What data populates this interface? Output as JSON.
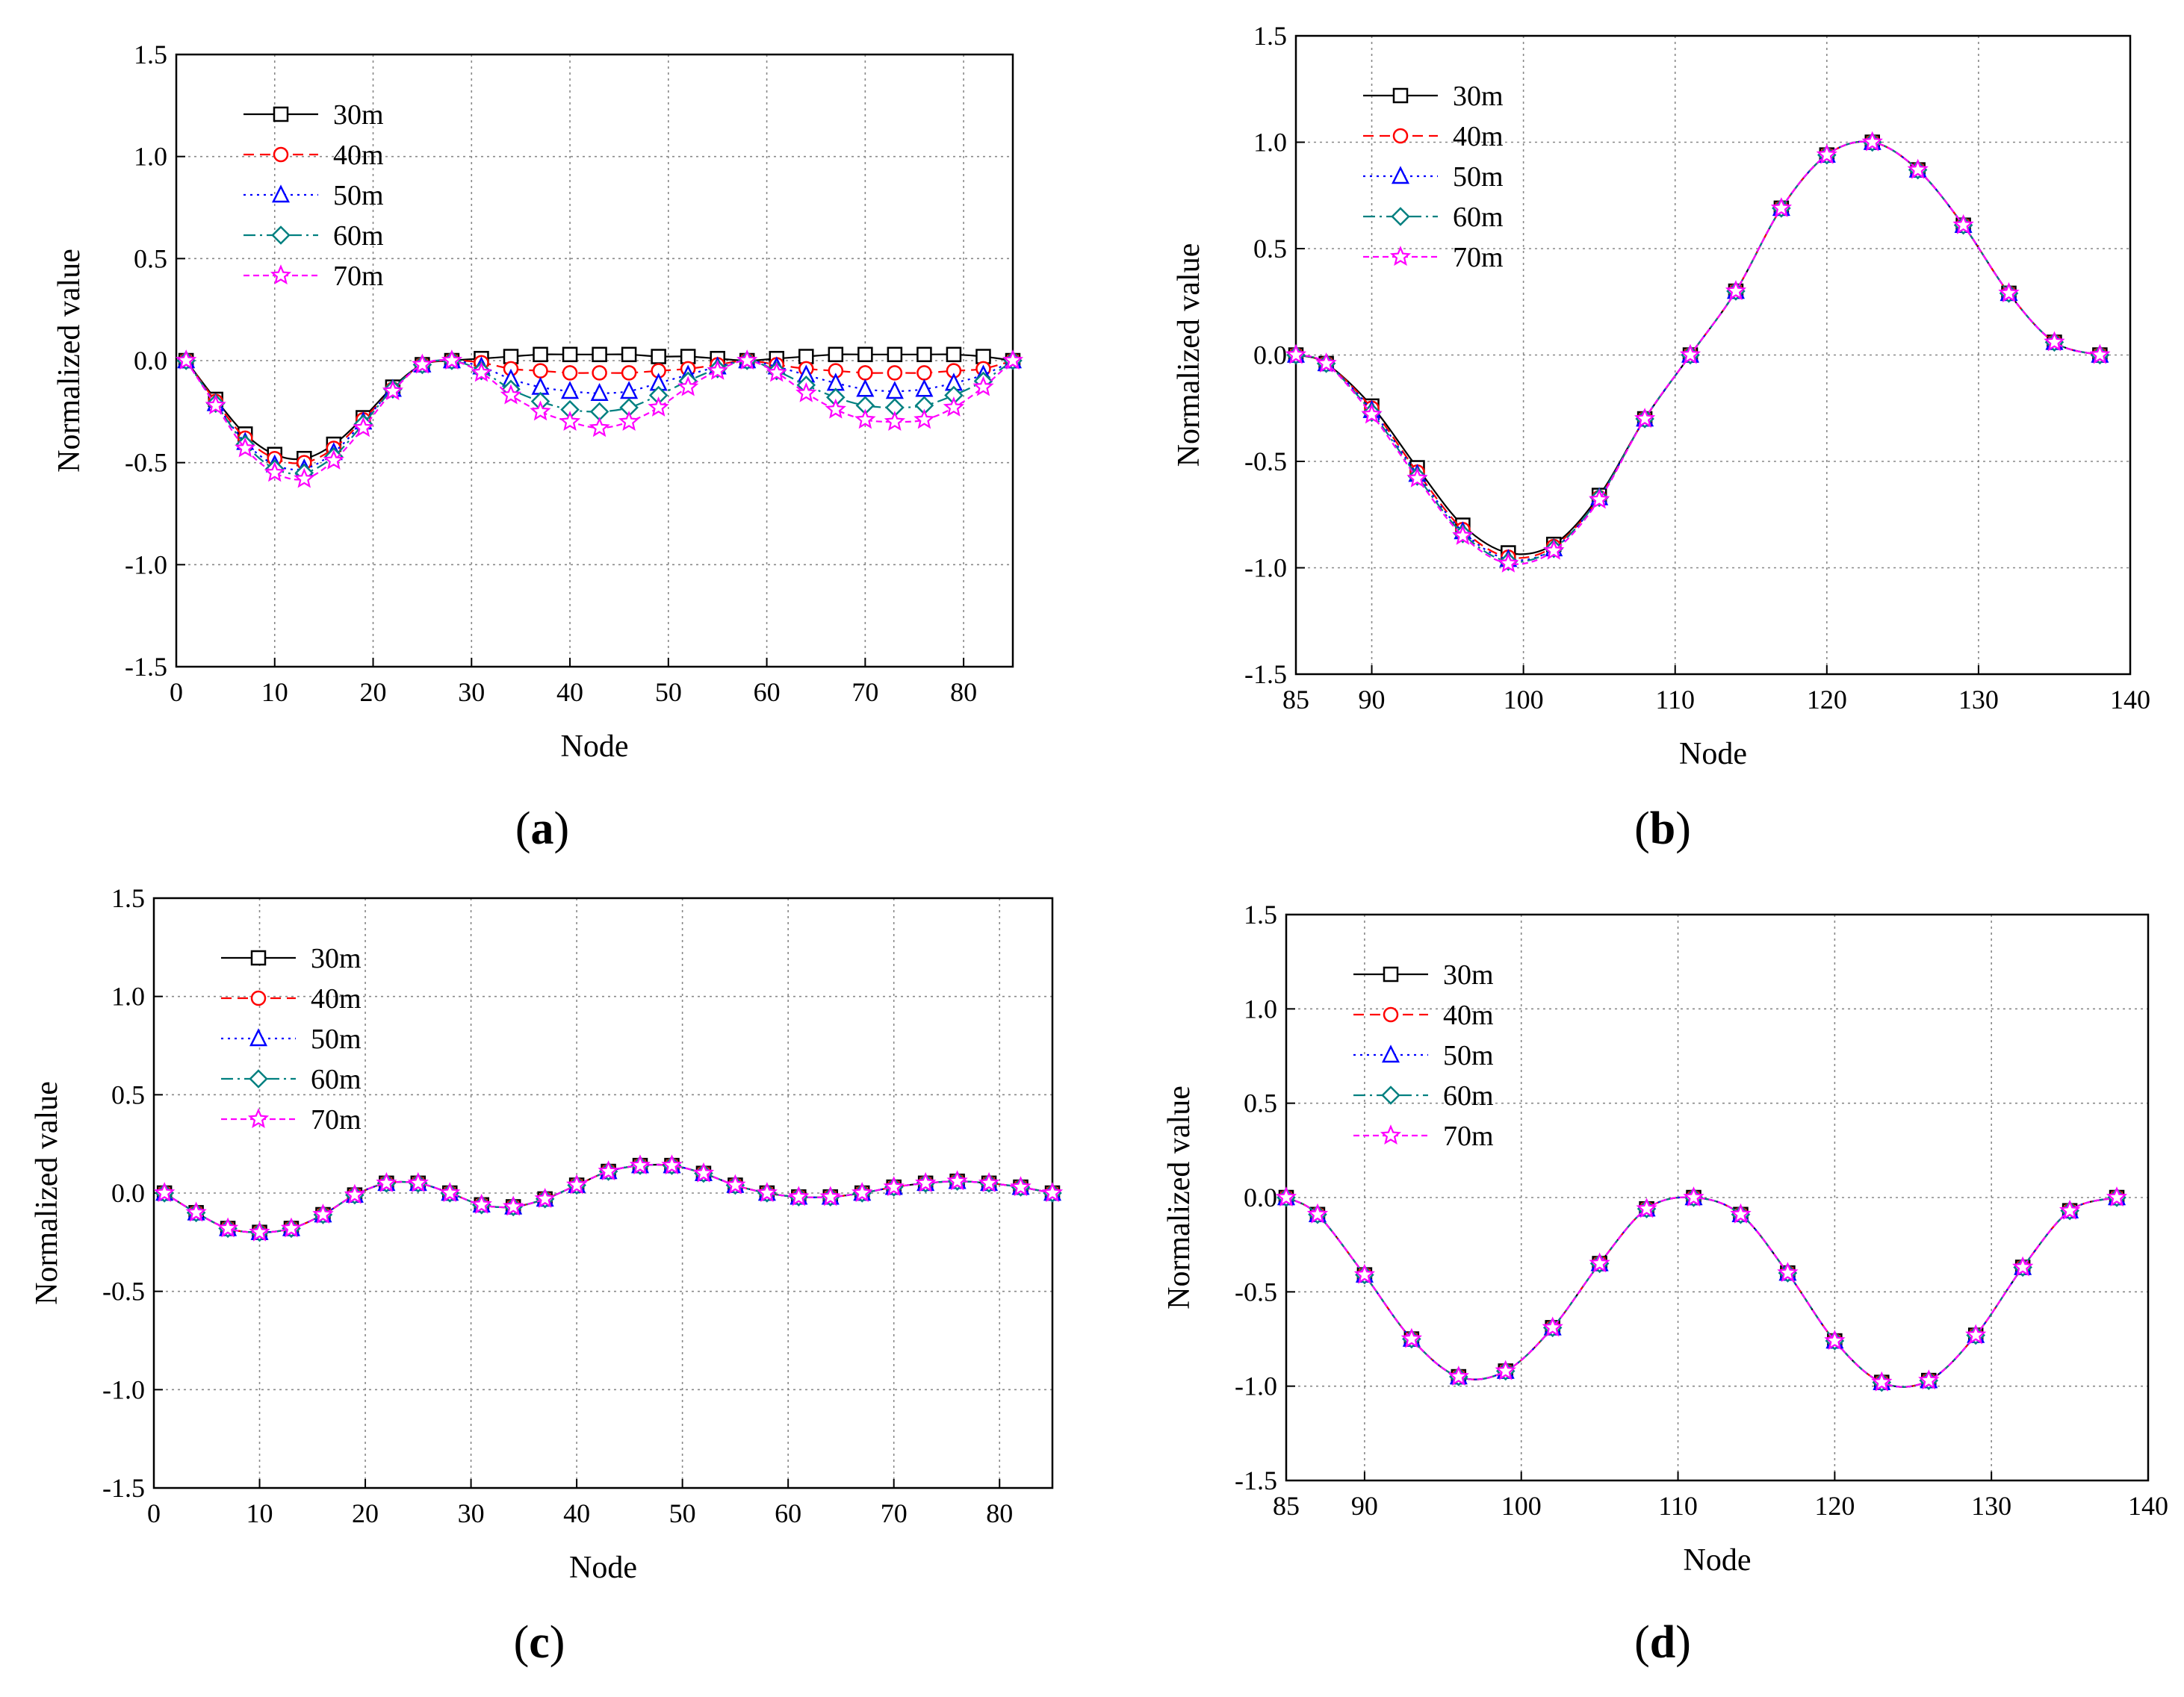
{
  "figure": {
    "panels": [
      {
        "id": "a",
        "label_open": "(",
        "label_letter": "a",
        "label_close": ")"
      },
      {
        "id": "b",
        "label_open": "(",
        "label_letter": "b",
        "label_close": ")"
      },
      {
        "id": "c",
        "label_open": "(",
        "label_letter": "c",
        "label_close": ")"
      },
      {
        "id": "d",
        "label_open": "(",
        "label_letter": "d",
        "label_close": ")"
      }
    ]
  },
  "series_style": [
    {
      "name": "30m",
      "color": "#000000",
      "marker": "square",
      "dash": "solid"
    },
    {
      "name": "40m",
      "color": "#ff0000",
      "marker": "circle",
      "dash": "dash"
    },
    {
      "name": "50m",
      "color": "#0000ff",
      "marker": "triangle",
      "dash": "dot"
    },
    {
      "name": "60m",
      "color": "#008080",
      "marker": "diamond",
      "dash": "dashdot"
    },
    {
      "name": "70m",
      "color": "#ff00ff",
      "marker": "star",
      "dash": "shortdash"
    }
  ],
  "chart_data": [
    {
      "id": "a",
      "type": "line",
      "xlabel": "Node",
      "ylabel": "Normalized value",
      "xlim": [
        0,
        85
      ],
      "ylim": [
        -1.5,
        1.5
      ],
      "xticks": [
        0,
        10,
        20,
        30,
        40,
        50,
        60,
        70,
        80
      ],
      "yticks": [
        -1.5,
        -1.0,
        -0.5,
        0.0,
        0.5,
        1.0,
        1.5
      ],
      "ytick_labels": [
        "-1.5",
        "-1.0",
        "-0.5",
        "0.0",
        "0.5",
        "1.0",
        "1.5"
      ],
      "xtick_labels": [
        "0",
        "10",
        "20",
        "30",
        "40",
        "50",
        "60",
        "70",
        "80"
      ],
      "grid": true,
      "legend": "top-left",
      "x": [
        1,
        4,
        7,
        10,
        13,
        16,
        19,
        22,
        25,
        28,
        31,
        34,
        37,
        40,
        43,
        46,
        49,
        52,
        55,
        58,
        61,
        64,
        67,
        70,
        73,
        76,
        79,
        82,
        85
      ],
      "series": [
        {
          "name": "30m",
          "values": [
            0,
            -0.19,
            -0.36,
            -0.46,
            -0.48,
            -0.41,
            -0.28,
            -0.13,
            -0.02,
            0.0,
            0.01,
            0.02,
            0.03,
            0.03,
            0.03,
            0.03,
            0.02,
            0.02,
            0.01,
            0.0,
            0.01,
            0.02,
            0.03,
            0.03,
            0.03,
            0.03,
            0.03,
            0.02,
            0.0
          ]
        },
        {
          "name": "40m",
          "values": [
            0,
            -0.2,
            -0.38,
            -0.48,
            -0.5,
            -0.43,
            -0.29,
            -0.14,
            -0.02,
            0.0,
            -0.01,
            -0.04,
            -0.05,
            -0.06,
            -0.06,
            -0.06,
            -0.05,
            -0.04,
            -0.02,
            0.0,
            -0.02,
            -0.04,
            -0.05,
            -0.06,
            -0.06,
            -0.06,
            -0.05,
            -0.04,
            0.0
          ]
        },
        {
          "name": "50m",
          "values": [
            0,
            -0.21,
            -0.4,
            -0.51,
            -0.53,
            -0.45,
            -0.3,
            -0.14,
            -0.02,
            0.0,
            -0.03,
            -0.09,
            -0.13,
            -0.15,
            -0.16,
            -0.15,
            -0.11,
            -0.07,
            -0.03,
            0.0,
            -0.03,
            -0.07,
            -0.11,
            -0.14,
            -0.15,
            -0.14,
            -0.11,
            -0.07,
            0.0
          ]
        },
        {
          "name": "60m",
          "values": [
            0,
            -0.21,
            -0.41,
            -0.53,
            -0.55,
            -0.47,
            -0.31,
            -0.14,
            -0.02,
            0.0,
            -0.05,
            -0.14,
            -0.2,
            -0.24,
            -0.25,
            -0.23,
            -0.17,
            -0.1,
            -0.04,
            0.0,
            -0.05,
            -0.12,
            -0.18,
            -0.22,
            -0.23,
            -0.22,
            -0.17,
            -0.1,
            0.0
          ]
        },
        {
          "name": "70m",
          "values": [
            0,
            -0.22,
            -0.43,
            -0.55,
            -0.58,
            -0.49,
            -0.33,
            -0.15,
            -0.02,
            0.0,
            -0.06,
            -0.17,
            -0.25,
            -0.3,
            -0.33,
            -0.3,
            -0.23,
            -0.13,
            -0.05,
            0.0,
            -0.06,
            -0.16,
            -0.24,
            -0.29,
            -0.3,
            -0.29,
            -0.23,
            -0.13,
            0.0
          ]
        }
      ]
    },
    {
      "id": "b",
      "type": "line",
      "xlabel": "Node",
      "ylabel": "Normalized value",
      "xlim": [
        85,
        140
      ],
      "ylim": [
        -1.5,
        1.5
      ],
      "xticks": [
        85,
        90,
        100,
        110,
        120,
        130,
        140
      ],
      "yticks": [
        -1.5,
        -1.0,
        -0.5,
        0.0,
        0.5,
        1.0,
        1.5
      ],
      "ytick_labels": [
        "-1.5",
        "-1.0",
        "-0.5",
        "0.0",
        "0.5",
        "1.0",
        "1.5"
      ],
      "xtick_labels": [
        "85",
        "90",
        "100",
        "110",
        "120",
        "130",
        "140"
      ],
      "grid": true,
      "legend": "top-left",
      "x": [
        85,
        87,
        90,
        93,
        96,
        99,
        102,
        105,
        108,
        111,
        114,
        117,
        120,
        123,
        126,
        129,
        132,
        135,
        138
      ],
      "series": [
        {
          "name": "30m",
          "values": [
            0,
            -0.04,
            -0.24,
            -0.53,
            -0.8,
            -0.93,
            -0.89,
            -0.66,
            -0.3,
            0.0,
            0.3,
            0.69,
            0.94,
            1.0,
            0.87,
            0.61,
            0.29,
            0.06,
            0.0
          ]
        },
        {
          "name": "40m",
          "values": [
            0,
            -0.04,
            -0.25,
            -0.55,
            -0.82,
            -0.95,
            -0.9,
            -0.67,
            -0.3,
            0.0,
            0.3,
            0.69,
            0.94,
            1.0,
            0.87,
            0.61,
            0.29,
            0.06,
            0.0
          ]
        },
        {
          "name": "50m",
          "values": [
            0,
            -0.04,
            -0.26,
            -0.56,
            -0.83,
            -0.96,
            -0.91,
            -0.67,
            -0.3,
            0.0,
            0.3,
            0.69,
            0.94,
            1.0,
            0.87,
            0.61,
            0.29,
            0.06,
            0.0
          ]
        },
        {
          "name": "60m",
          "values": [
            0,
            -0.04,
            -0.27,
            -0.57,
            -0.84,
            -0.97,
            -0.91,
            -0.67,
            -0.3,
            0.0,
            0.3,
            0.69,
            0.94,
            1.0,
            0.87,
            0.61,
            0.29,
            0.06,
            0.0
          ]
        },
        {
          "name": "70m",
          "values": [
            0,
            -0.04,
            -0.28,
            -0.58,
            -0.85,
            -0.98,
            -0.92,
            -0.68,
            -0.3,
            0.0,
            0.3,
            0.69,
            0.94,
            1.0,
            0.87,
            0.61,
            0.29,
            0.06,
            0.0
          ]
        }
      ]
    },
    {
      "id": "c",
      "type": "line",
      "xlabel": "Node",
      "ylabel": "Normalized value",
      "xlim": [
        0,
        85
      ],
      "ylim": [
        -1.5,
        1.5
      ],
      "xticks": [
        0,
        10,
        20,
        30,
        40,
        50,
        60,
        70,
        80
      ],
      "yticks": [
        -1.5,
        -1.0,
        -0.5,
        0.0,
        0.5,
        1.0,
        1.5
      ],
      "ytick_labels": [
        "-1.5",
        "-1.0",
        "-0.5",
        "0.0",
        "0.5",
        "1.0",
        "1.5"
      ],
      "xtick_labels": [
        "0",
        "10",
        "20",
        "30",
        "40",
        "50",
        "60",
        "70",
        "80"
      ],
      "grid": true,
      "legend": "top-left",
      "x": [
        1,
        4,
        7,
        10,
        13,
        16,
        19,
        22,
        25,
        28,
        31,
        34,
        37,
        40,
        43,
        46,
        49,
        52,
        55,
        58,
        61,
        64,
        67,
        70,
        73,
        76,
        79,
        82,
        85
      ],
      "series": [
        {
          "name": "30m",
          "values": [
            0,
            -0.1,
            -0.18,
            -0.2,
            -0.18,
            -0.11,
            -0.01,
            0.05,
            0.05,
            0.0,
            -0.06,
            -0.07,
            -0.03,
            0.04,
            0.11,
            0.14,
            0.14,
            0.1,
            0.04,
            0.0,
            -0.02,
            -0.02,
            0.0,
            0.03,
            0.05,
            0.06,
            0.05,
            0.03,
            0.0
          ]
        },
        {
          "name": "40m",
          "values": [
            0,
            -0.1,
            -0.18,
            -0.2,
            -0.18,
            -0.11,
            -0.01,
            0.05,
            0.05,
            0.0,
            -0.06,
            -0.07,
            -0.03,
            0.04,
            0.11,
            0.14,
            0.14,
            0.1,
            0.04,
            0.0,
            -0.02,
            -0.02,
            0.0,
            0.03,
            0.05,
            0.06,
            0.05,
            0.03,
            0.0
          ]
        },
        {
          "name": "50m",
          "values": [
            0,
            -0.1,
            -0.18,
            -0.2,
            -0.18,
            -0.11,
            -0.01,
            0.05,
            0.05,
            0.0,
            -0.06,
            -0.07,
            -0.03,
            0.04,
            0.11,
            0.14,
            0.14,
            0.1,
            0.04,
            0.0,
            -0.02,
            -0.02,
            0.0,
            0.03,
            0.05,
            0.06,
            0.05,
            0.03,
            0.0
          ]
        },
        {
          "name": "60m",
          "values": [
            0,
            -0.1,
            -0.18,
            -0.2,
            -0.18,
            -0.11,
            -0.01,
            0.05,
            0.05,
            0.0,
            -0.06,
            -0.07,
            -0.03,
            0.04,
            0.11,
            0.14,
            0.14,
            0.1,
            0.04,
            0.0,
            -0.02,
            -0.02,
            0.0,
            0.03,
            0.05,
            0.06,
            0.05,
            0.03,
            0.0
          ]
        },
        {
          "name": "70m",
          "values": [
            0,
            -0.1,
            -0.18,
            -0.2,
            -0.18,
            -0.11,
            -0.01,
            0.05,
            0.05,
            0.0,
            -0.06,
            -0.07,
            -0.03,
            0.04,
            0.11,
            0.14,
            0.14,
            0.1,
            0.04,
            0.0,
            -0.02,
            -0.02,
            0.0,
            0.03,
            0.05,
            0.06,
            0.05,
            0.03,
            0.0
          ]
        }
      ]
    },
    {
      "id": "d",
      "type": "line",
      "xlabel": "Node",
      "ylabel": "Normalized value",
      "xlim": [
        85,
        140
      ],
      "ylim": [
        -1.5,
        1.5
      ],
      "xticks": [
        85,
        90,
        100,
        110,
        120,
        130,
        140
      ],
      "yticks": [
        -1.5,
        -1.0,
        -0.5,
        0.0,
        0.5,
        1.0,
        1.5
      ],
      "ytick_labels": [
        "-1.5",
        "-1.0",
        "-0.5",
        "0.0",
        "0.5",
        "1.0",
        "1.5"
      ],
      "xtick_labels": [
        "85",
        "90",
        "100",
        "110",
        "120",
        "130",
        "140"
      ],
      "grid": true,
      "legend": "top-left",
      "x": [
        85,
        87,
        90,
        93,
        96,
        99,
        102,
        105,
        108,
        111,
        114,
        117,
        120,
        123,
        126,
        129,
        132,
        135,
        138
      ],
      "series": [
        {
          "name": "30m",
          "values": [
            0,
            -0.09,
            -0.41,
            -0.75,
            -0.95,
            -0.92,
            -0.69,
            -0.35,
            -0.06,
            0.0,
            -0.09,
            -0.4,
            -0.76,
            -0.98,
            -0.97,
            -0.73,
            -0.37,
            -0.07,
            0.0
          ]
        },
        {
          "name": "40m",
          "values": [
            0,
            -0.09,
            -0.41,
            -0.75,
            -0.95,
            -0.92,
            -0.69,
            -0.35,
            -0.06,
            0.0,
            -0.09,
            -0.4,
            -0.76,
            -0.98,
            -0.97,
            -0.73,
            -0.37,
            -0.07,
            0.0
          ]
        },
        {
          "name": "50m",
          "values": [
            0,
            -0.09,
            -0.41,
            -0.75,
            -0.95,
            -0.92,
            -0.69,
            -0.35,
            -0.06,
            0.0,
            -0.09,
            -0.4,
            -0.76,
            -0.98,
            -0.97,
            -0.73,
            -0.37,
            -0.07,
            0.0
          ]
        },
        {
          "name": "60m",
          "values": [
            0,
            -0.09,
            -0.41,
            -0.75,
            -0.95,
            -0.92,
            -0.69,
            -0.35,
            -0.06,
            0.0,
            -0.09,
            -0.4,
            -0.76,
            -0.98,
            -0.97,
            -0.73,
            -0.37,
            -0.07,
            0.0
          ]
        },
        {
          "name": "70m",
          "values": [
            0,
            -0.09,
            -0.41,
            -0.75,
            -0.95,
            -0.92,
            -0.69,
            -0.35,
            -0.06,
            0.0,
            -0.09,
            -0.4,
            -0.76,
            -0.98,
            -0.97,
            -0.73,
            -0.37,
            -0.07,
            0.0
          ]
        }
      ]
    }
  ]
}
